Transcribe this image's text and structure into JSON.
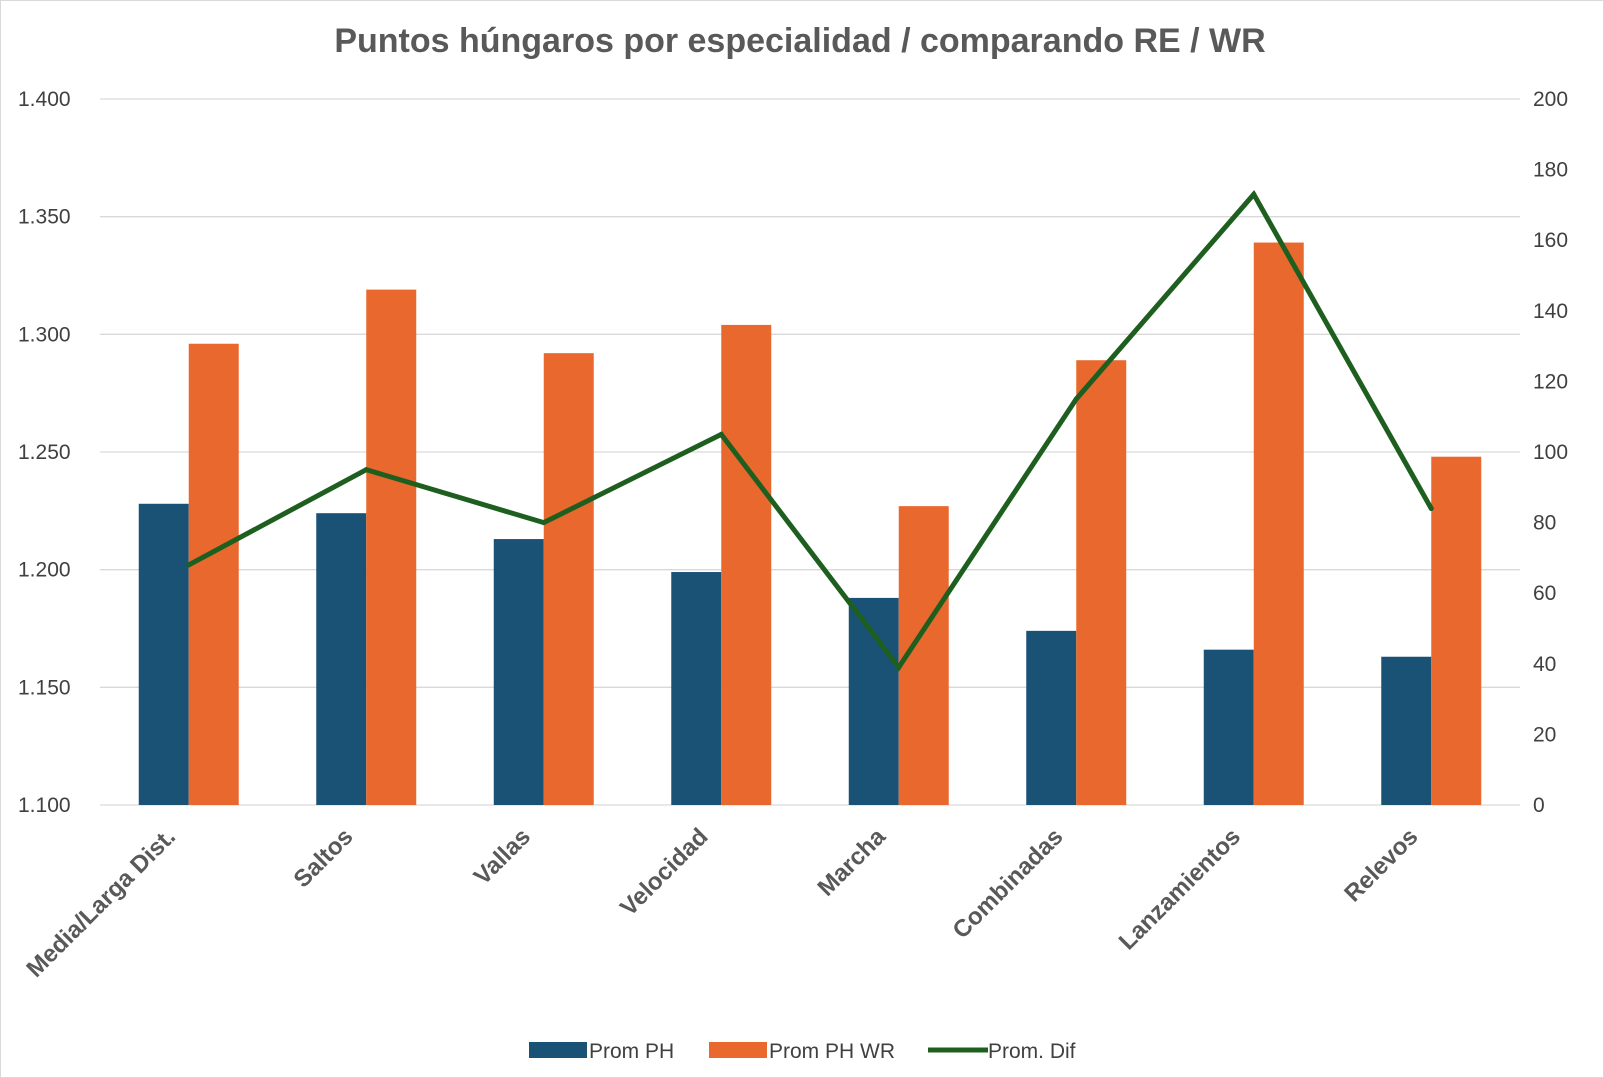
{
  "chart_data": {
    "type": "bar",
    "title": "Puntos húngaros por especialidad / comparando RE / WR",
    "categories": [
      "Media/Larga Dist.",
      "Saltos",
      "Vallas",
      "Velocidad",
      "Marcha",
      "Combinadas",
      "Lanzamientos",
      "Relevos"
    ],
    "series": [
      {
        "name": "Prom PH",
        "type": "bar",
        "axis": "left",
        "color": "#1a5276",
        "values": [
          1228,
          1224,
          1213,
          1199,
          1188,
          1174,
          1166,
          1163
        ]
      },
      {
        "name": "Prom PH WR",
        "type": "bar",
        "axis": "left",
        "color": "#e8682e",
        "values": [
          1296,
          1319,
          1292,
          1304,
          1227,
          1289,
          1339,
          1248
        ]
      },
      {
        "name": "Prom. Dif",
        "type": "line",
        "axis": "right",
        "color": "#1e5f20",
        "values": [
          68,
          95,
          80,
          105,
          39,
          115,
          173,
          84
        ]
      }
    ],
    "ylim_left": [
      1100,
      1400
    ],
    "ylim_right": [
      0,
      200
    ],
    "yticks_left": [
      "1.100",
      "1.150",
      "1.200",
      "1.250",
      "1.300",
      "1.350",
      "1.400"
    ],
    "yticks_right": [
      "0",
      "20",
      "40",
      "60",
      "80",
      "100",
      "120",
      "140",
      "160",
      "180",
      "200"
    ],
    "grid": true,
    "legend_position": "bottom"
  }
}
